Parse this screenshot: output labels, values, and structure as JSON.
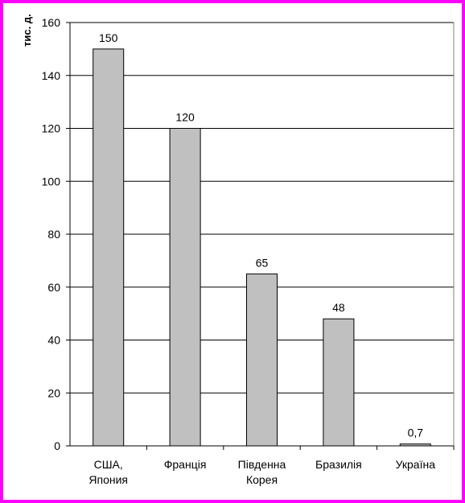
{
  "chart_data": {
    "type": "bar",
    "ylabel": "тис. д.",
    "categories": [
      [
        "США,",
        "Япония"
      ],
      [
        "Франція"
      ],
      [
        "Південна",
        "Корея"
      ],
      [
        "Бразилія"
      ],
      [
        "Україна"
      ]
    ],
    "values": [
      150,
      120,
      65,
      48,
      0.7
    ],
    "value_labels": [
      "150",
      "120",
      "65",
      "48",
      "0,7"
    ],
    "ylim": [
      0,
      160
    ],
    "yticks": [
      0,
      20,
      40,
      60,
      80,
      100,
      120,
      140,
      160
    ],
    "grid": true,
    "bar_color": "#c0c0c0",
    "frame_color": "#ff00ff"
  }
}
